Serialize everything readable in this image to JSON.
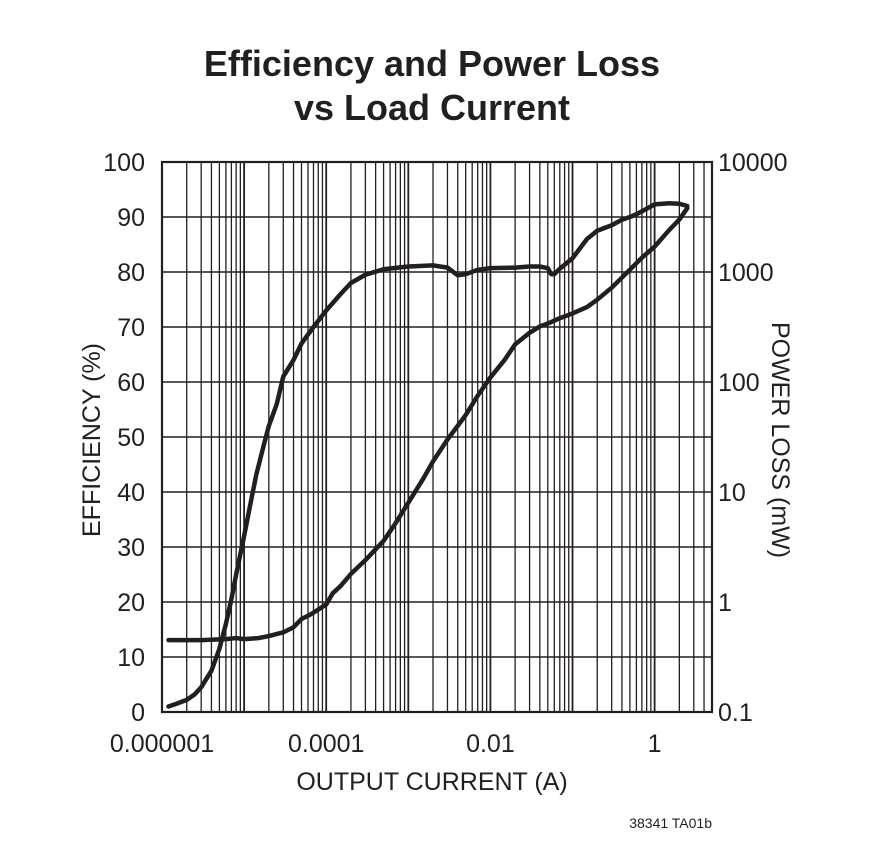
{
  "chart_data": {
    "type": "line",
    "title_lines": [
      "Efficiency and Power Loss",
      "vs Load Current"
    ],
    "xlabel": "OUTPUT CURRENT (A)",
    "ylabel_left": "EFFICIENCY (%)",
    "ylabel_right": "POWER LOSS (mW)",
    "x_scale": "log",
    "xlim": [
      1e-06,
      5
    ],
    "ylim_left": [
      0,
      100
    ],
    "ylim_right": [
      0.1,
      10000
    ],
    "y_right_scale": "log",
    "x_tick_labels": [
      "0.000001",
      "0.0001",
      "0.01",
      "1"
    ],
    "y_left_tick_labels": [
      "0",
      "10",
      "20",
      "30",
      "40",
      "50",
      "60",
      "70",
      "80",
      "90",
      "100"
    ],
    "y_right_tick_labels": [
      "0.1",
      "1",
      "10",
      "100",
      "1000",
      "10000"
    ],
    "grid": true,
    "figure_code": "38341 TA01b",
    "series": [
      {
        "name": "Efficiency",
        "axis": "left",
        "points": [
          [
            1.2e-06,
            1.0
          ],
          [
            1.5e-06,
            1.5
          ],
          [
            2e-06,
            2.2
          ],
          [
            2.5e-06,
            3.2
          ],
          [
            3e-06,
            4.5
          ],
          [
            4e-06,
            7.5
          ],
          [
            5e-06,
            11.5
          ],
          [
            6e-06,
            16
          ],
          [
            7e-06,
            20.5
          ],
          [
            8e-06,
            25
          ],
          [
            1e-05,
            32
          ],
          [
            1.2e-05,
            38
          ],
          [
            1.4e-05,
            43
          ],
          [
            1.7e-05,
            48
          ],
          [
            2e-05,
            52
          ],
          [
            2.5e-05,
            56
          ],
          [
            3e-05,
            61
          ],
          [
            4e-05,
            64
          ],
          [
            5e-05,
            67
          ],
          [
            7e-05,
            70
          ],
          [
            0.0001,
            73
          ],
          [
            0.00015,
            76
          ],
          [
            0.0002,
            78
          ],
          [
            0.0003,
            79.5
          ],
          [
            0.0005,
            80.5
          ],
          [
            0.001,
            81
          ],
          [
            0.002,
            81.2
          ],
          [
            0.003,
            80.8
          ],
          [
            0.004,
            79.4
          ],
          [
            0.005,
            79.6
          ],
          [
            0.007,
            80.4
          ],
          [
            0.01,
            80.7
          ],
          [
            0.02,
            80.8
          ],
          [
            0.03,
            81
          ],
          [
            0.04,
            81
          ],
          [
            0.05,
            80.7
          ],
          [
            0.055,
            79.6
          ],
          [
            0.06,
            79.6
          ],
          [
            0.07,
            80.6
          ],
          [
            0.1,
            82.5
          ],
          [
            0.15,
            86
          ],
          [
            0.2,
            87.5
          ],
          [
            0.3,
            88.5
          ],
          [
            0.4,
            89.5
          ],
          [
            0.5,
            90
          ],
          [
            0.6,
            90.5
          ],
          [
            0.8,
            91.5
          ],
          [
            1,
            92.3
          ],
          [
            1.5,
            92.5
          ],
          [
            2,
            92.4
          ],
          [
            2.5,
            92
          ]
        ]
      },
      {
        "name": "Power Loss",
        "axis": "right",
        "points": [
          [
            1.2e-06,
            0.45
          ],
          [
            3e-06,
            0.45
          ],
          [
            6e-06,
            0.46
          ],
          [
            8e-06,
            0.47
          ],
          [
            1e-05,
            0.46
          ],
          [
            1.5e-05,
            0.47
          ],
          [
            2e-05,
            0.49
          ],
          [
            3e-05,
            0.53
          ],
          [
            4e-05,
            0.59
          ],
          [
            5e-05,
            0.7
          ],
          [
            6e-05,
            0.75
          ],
          [
            7e-05,
            0.8
          ],
          [
            0.0001,
            0.95
          ],
          [
            0.00012,
            1.2
          ],
          [
            0.00015,
            1.4
          ],
          [
            0.0002,
            1.8
          ],
          [
            0.0003,
            2.4
          ],
          [
            0.0005,
            3.6
          ],
          [
            0.0007,
            5.2
          ],
          [
            0.001,
            8
          ],
          [
            0.0015,
            13
          ],
          [
            0.002,
            19
          ],
          [
            0.003,
            30
          ],
          [
            0.005,
            50
          ],
          [
            0.007,
            75
          ],
          [
            0.01,
            110
          ],
          [
            0.015,
            160
          ],
          [
            0.02,
            220
          ],
          [
            0.03,
            280
          ],
          [
            0.04,
            320
          ],
          [
            0.05,
            340
          ],
          [
            0.07,
            380
          ],
          [
            0.1,
            420
          ],
          [
            0.15,
            480
          ],
          [
            0.2,
            560
          ],
          [
            0.3,
            720
          ],
          [
            0.5,
            1050
          ],
          [
            0.7,
            1350
          ],
          [
            1,
            1700
          ],
          [
            1.5,
            2400
          ],
          [
            2,
            3000
          ],
          [
            2.5,
            3800
          ]
        ]
      }
    ]
  }
}
